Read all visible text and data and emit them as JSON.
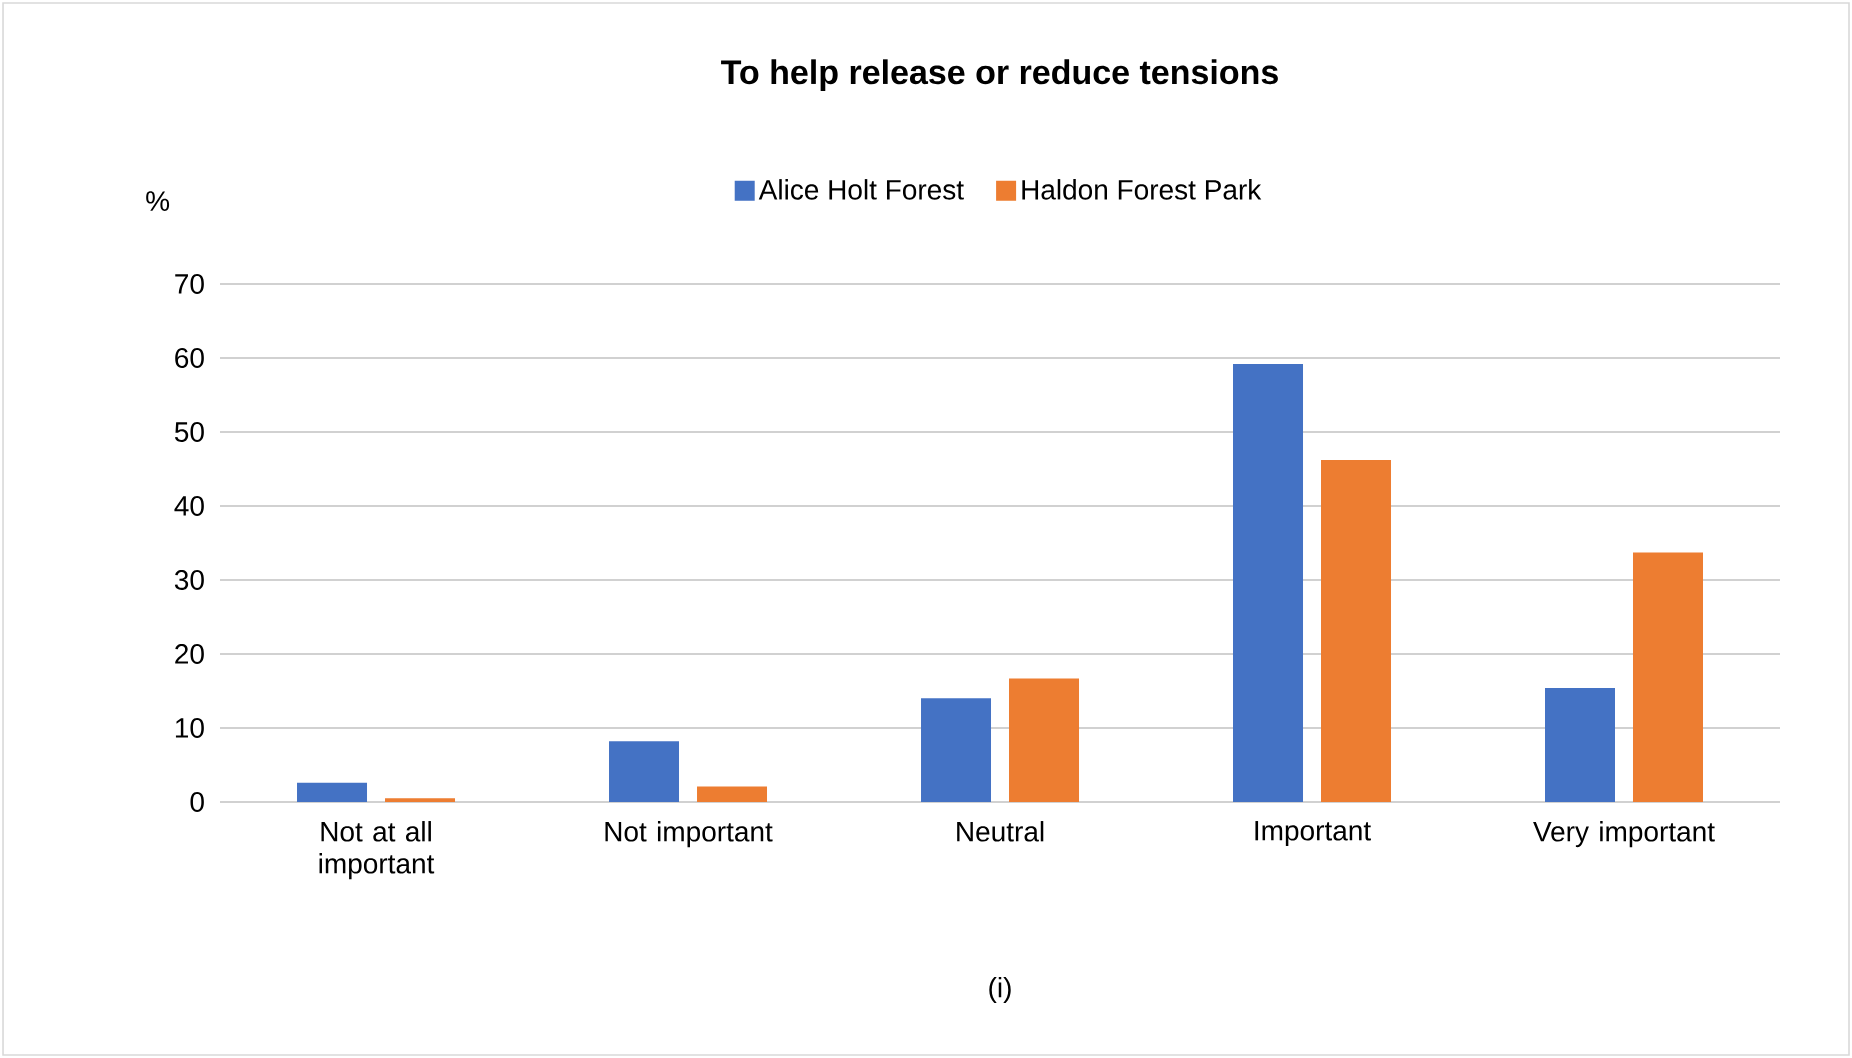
{
  "chart_data": {
    "type": "bar",
    "title": "To help release or reduce tensions",
    "ylabel": "%",
    "categories": [
      "Not at all important",
      "Not important",
      "Neutral",
      "Important",
      "Very important"
    ],
    "series": [
      {
        "name": "Alice Holt Forest",
        "color": "#4472c4",
        "values": [
          2.6,
          8.2,
          14.0,
          59.2,
          15.4
        ]
      },
      {
        "name": "Haldon Forest Park",
        "color": "#ed7d31",
        "values": [
          0.5,
          2.1,
          16.7,
          46.2,
          33.7
        ]
      }
    ],
    "ylim": [
      0,
      70
    ],
    "yticks": [
      0,
      10,
      20,
      30,
      40,
      50,
      60,
      70
    ],
    "grid": "y",
    "legend": "top",
    "annotations": [
      "(i)"
    ]
  }
}
